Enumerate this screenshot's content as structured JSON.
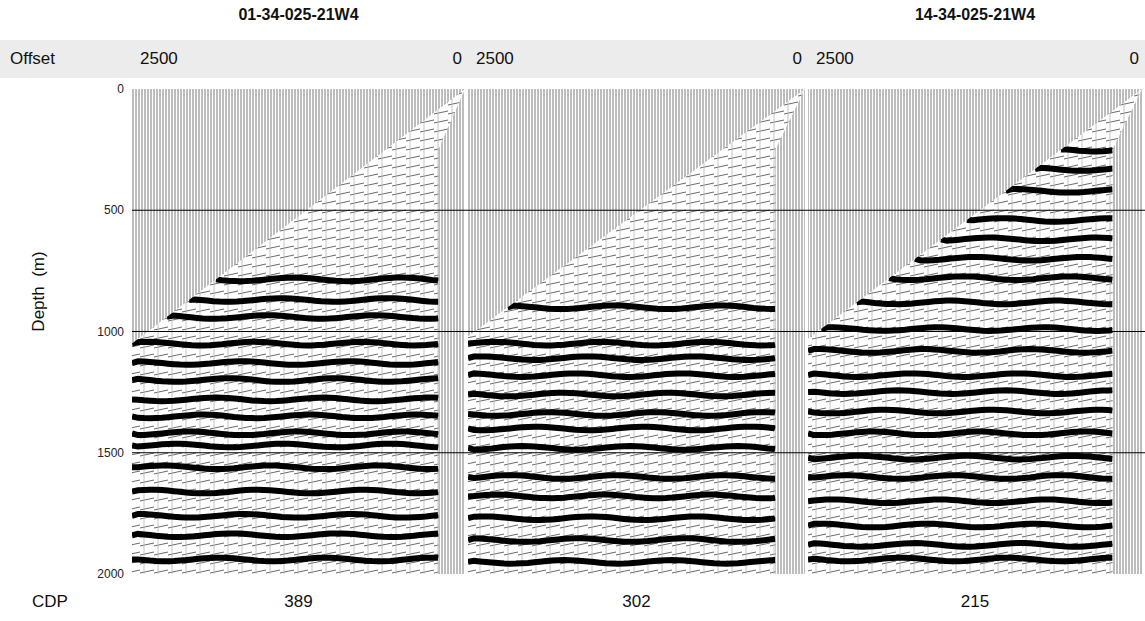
{
  "chart_data": {
    "type": "seismic_gather",
    "x_label": "Offset",
    "y_label": "Depth  (m)",
    "panel_label": "CDP",
    "xlim": [
      2500,
      0
    ],
    "xticks": [
      2500,
      0
    ],
    "ylim": [
      0,
      2000
    ],
    "yticks": [
      0,
      500,
      1000,
      1500,
      2000
    ],
    "grid": true,
    "panels": [
      {
        "well": "01-34-025-21W4",
        "cdp": 389,
        "mute": [
          {
            "offset": 2500,
            "depth": 1050
          },
          {
            "offset": 0,
            "depth": 0
          }
        ],
        "near_cut": {
          "offset": 200,
          "depth": 250
        },
        "reflectors": [
          785,
          870,
          940,
          1050,
          1130,
          1200,
          1280,
          1350,
          1420,
          1470,
          1560,
          1660,
          1760,
          1840,
          1940
        ]
      },
      {
        "cdp": 302,
        "mute": [
          {
            "offset": 2500,
            "depth": 1020
          },
          {
            "offset": 0,
            "depth": 0
          }
        ],
        "near_cut": {
          "offset": 220,
          "depth": 250
        },
        "reflectors": [
          900,
          1050,
          1110,
          1180,
          1260,
          1340,
          1400,
          1480,
          1600,
          1680,
          1770,
          1860,
          1950
        ]
      },
      {
        "well": "14-34-025-21W4",
        "cdp": 215,
        "mute": [
          {
            "offset": 2500,
            "depth": 1030
          },
          {
            "offset": 0,
            "depth": 0
          }
        ],
        "near_cut": {
          "offset": 220,
          "depth": 250
        },
        "reflectors": [
          250,
          330,
          420,
          540,
          620,
          700,
          780,
          880,
          990,
          1080,
          1180,
          1250,
          1330,
          1420,
          1520,
          1600,
          1700,
          1800,
          1880,
          1940
        ]
      }
    ]
  }
}
